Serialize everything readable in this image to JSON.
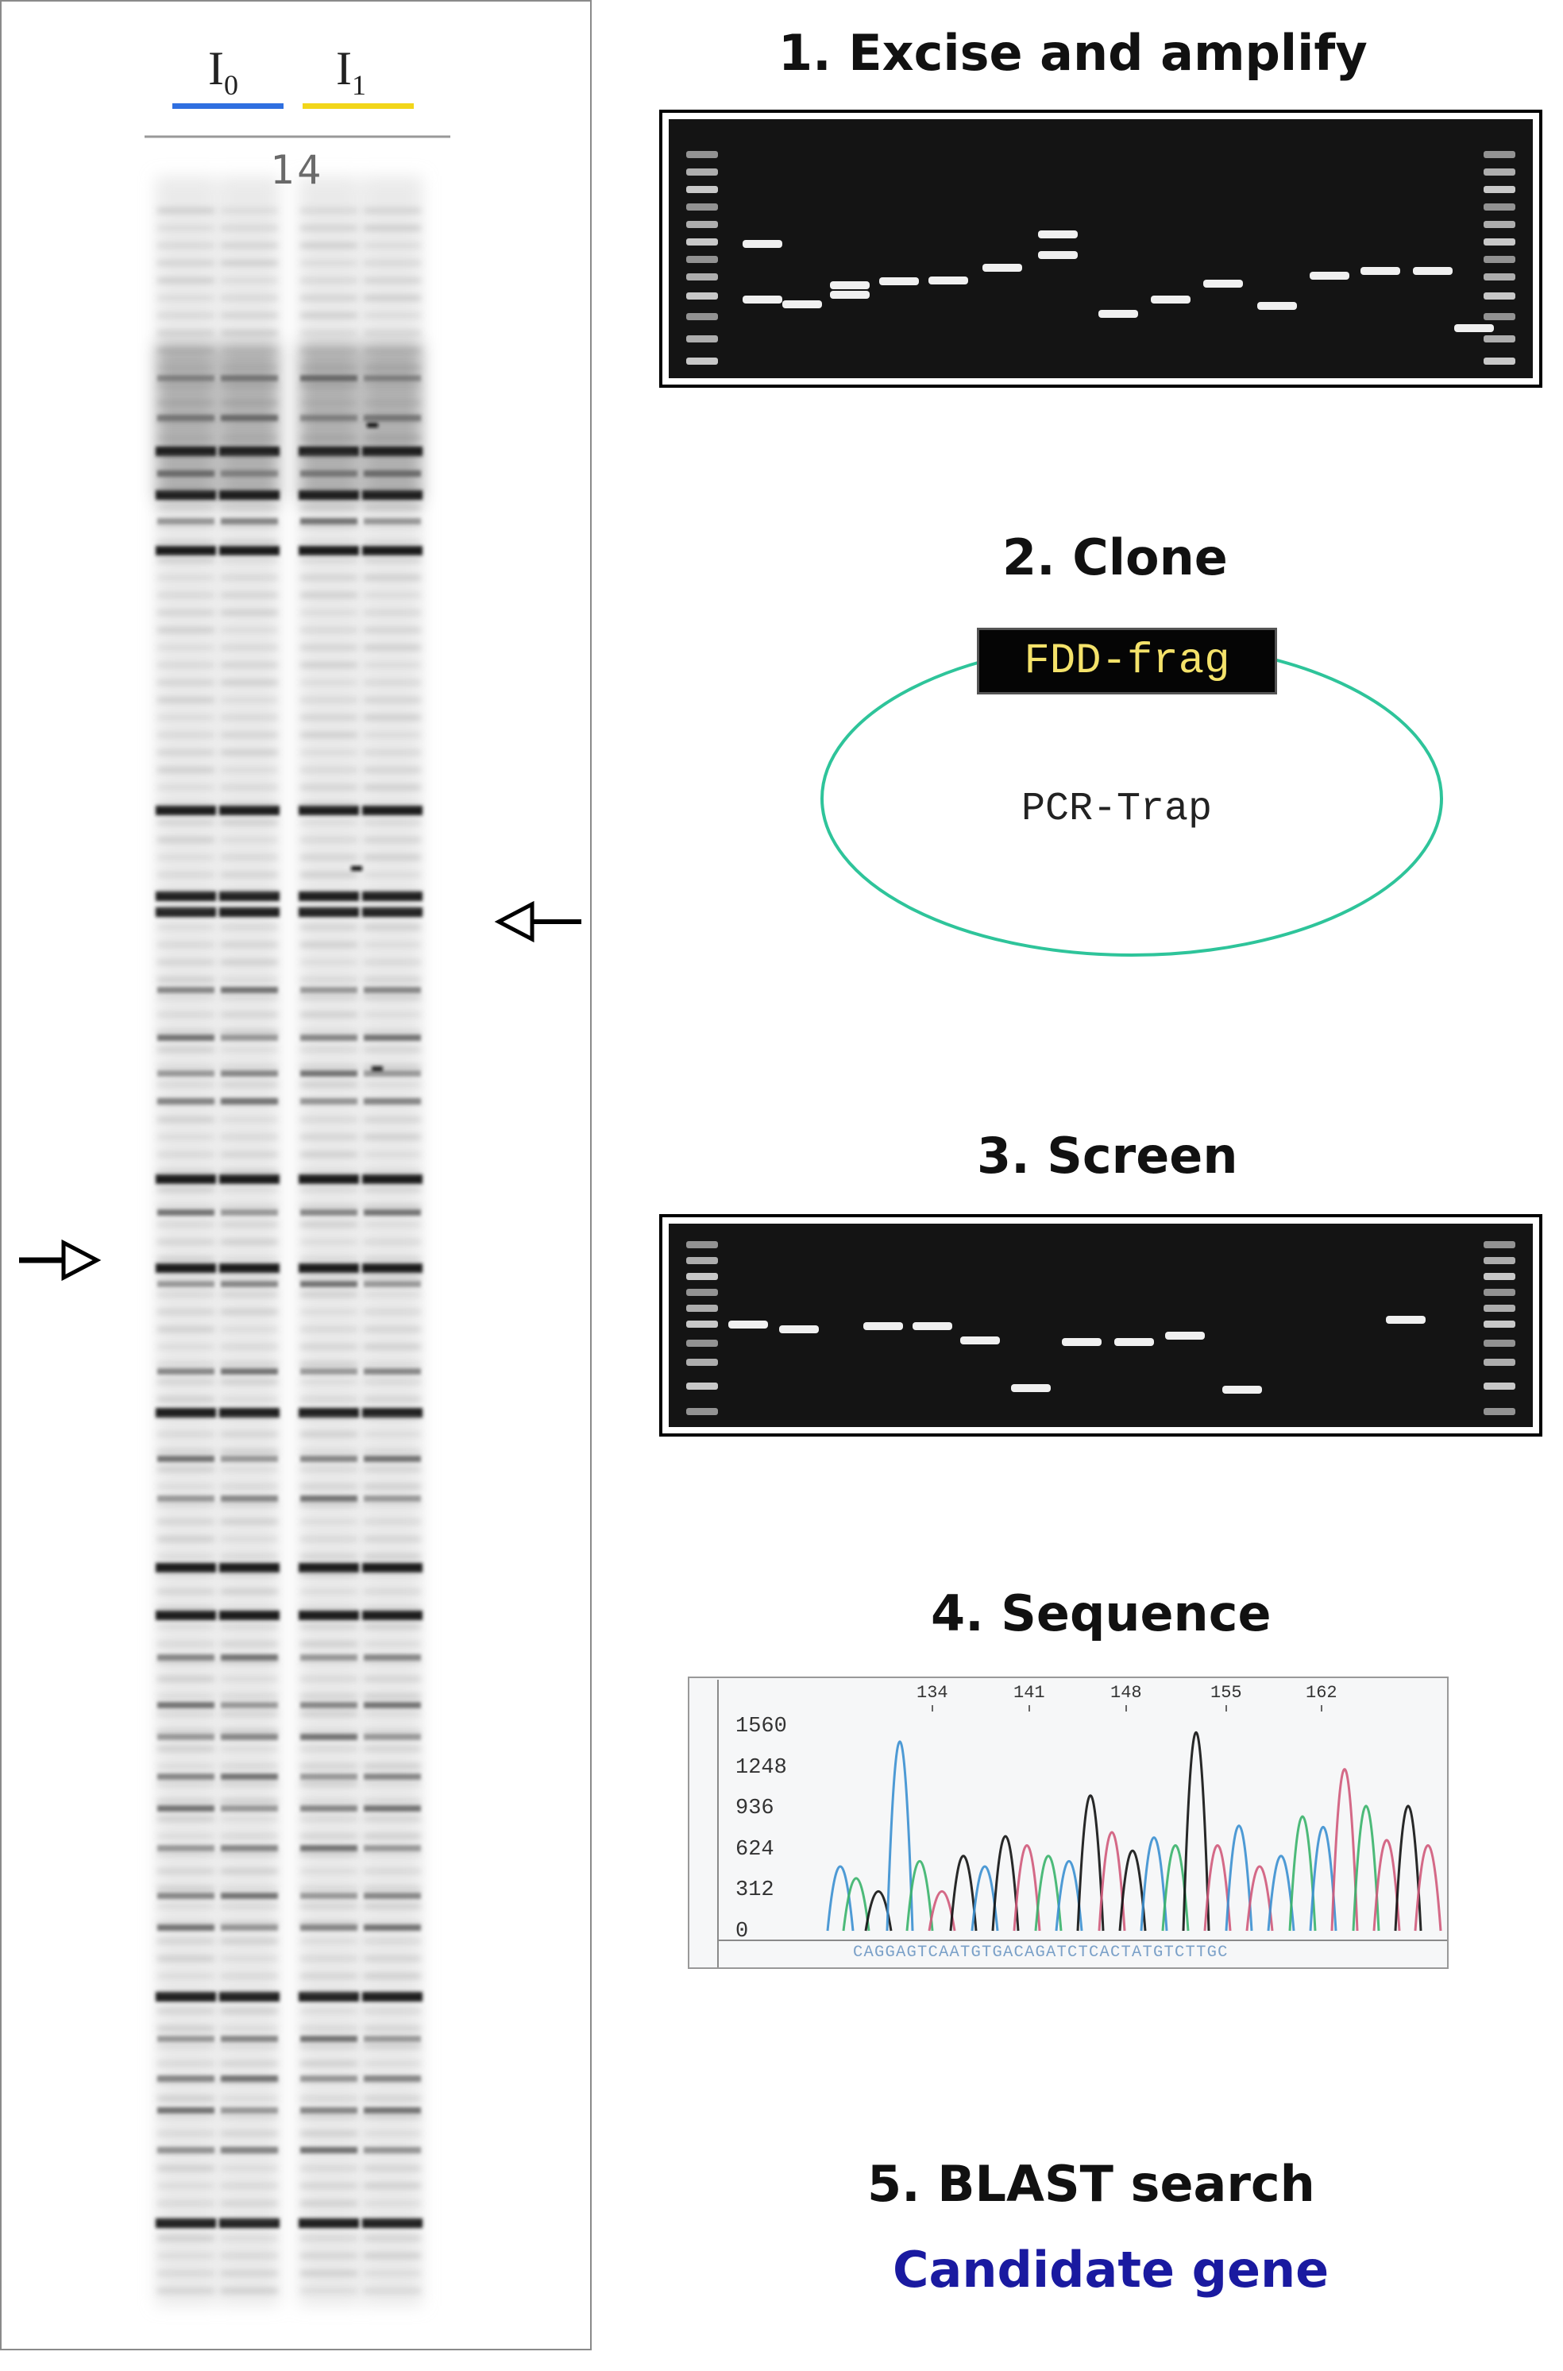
{
  "gel": {
    "lane_labels": [
      {
        "main": "I",
        "sub": "0",
        "underline_color": "#2f6fe0"
      },
      {
        "main": "I",
        "sub": "1",
        "underline_color": "#f2d61a"
      }
    ],
    "lane_number": "14"
  },
  "steps": [
    {
      "label": "1. Excise and amplify"
    },
    {
      "label": "2. Clone"
    },
    {
      "label": "3. Screen"
    },
    {
      "label": "4. Sequence"
    },
    {
      "label": "5. BLAST search"
    }
  ],
  "clone": {
    "insert_label": "FDD-frag",
    "vector_label": "PCR-Trap",
    "vector_color": "#2ec49a",
    "insert_text_color": "#f4e26a"
  },
  "chromatogram": {
    "position_labels": [
      "134",
      "141",
      "148",
      "155",
      "162"
    ],
    "y_ticks": [
      "1560",
      "1248",
      "936",
      "624",
      "312",
      "0"
    ],
    "sequence": "CAGGAGTCAATGTGACAGATCTCACTATGTCTTGC"
  },
  "result": {
    "label": "Candidate gene",
    "color": "#1a1aa0"
  }
}
